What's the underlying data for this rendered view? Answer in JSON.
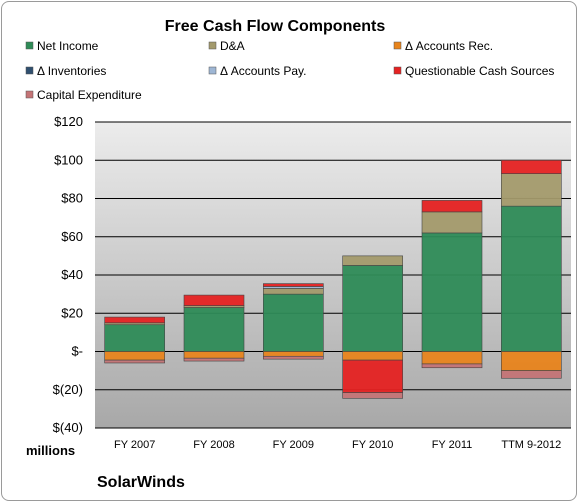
{
  "chart_data": {
    "type": "bar",
    "stacked": true,
    "title": "Free Cash Flow Components",
    "units_label": "millions",
    "company": "SolarWinds",
    "categories": [
      "FY 2007",
      "FY 2008",
      "FY 2009",
      "FY 2010",
      "FY 2011",
      "TTM 9-2012"
    ],
    "ylim": [
      -40,
      120
    ],
    "y_ticks": [
      -40,
      -20,
      0,
      20,
      40,
      60,
      80,
      100,
      120
    ],
    "y_tick_labels": [
      "$(40)",
      "$(20)",
      "$-",
      "$20",
      "$40",
      "$60",
      "$80",
      "$100",
      "$120"
    ],
    "grid": true,
    "legend_position": "top",
    "series": [
      {
        "name": "Net Income",
        "color": "#2e8b57",
        "values": [
          14,
          23,
          30,
          45,
          62,
          76
        ]
      },
      {
        "name": "D&A",
        "color": "#a39a6c",
        "values": [
          1,
          1,
          3,
          5,
          11,
          17
        ]
      },
      {
        "name": "Δ Accounts Rec.",
        "color": "#e8841c",
        "values": [
          -4.5,
          -3.5,
          -2.5,
          -4.5,
          -6.5,
          -10
        ]
      },
      {
        "name": "Δ Inventories",
        "color": "#2f4f6f",
        "values": [
          0,
          0,
          0,
          0,
          0,
          0
        ]
      },
      {
        "name": "Δ Accounts Pay.",
        "color": "#9eb6d4",
        "values": [
          0,
          0,
          1,
          0,
          0,
          0
        ]
      },
      {
        "name": "Questionable Cash Sources",
        "color": "#e52222",
        "values": [
          3,
          5.5,
          1.5,
          -17,
          6,
          7
        ]
      },
      {
        "name": "Capital Expenditure",
        "color": "#c47476",
        "values": [
          -1.5,
          -1.5,
          -1.5,
          -3,
          -2,
          -4
        ]
      }
    ]
  }
}
